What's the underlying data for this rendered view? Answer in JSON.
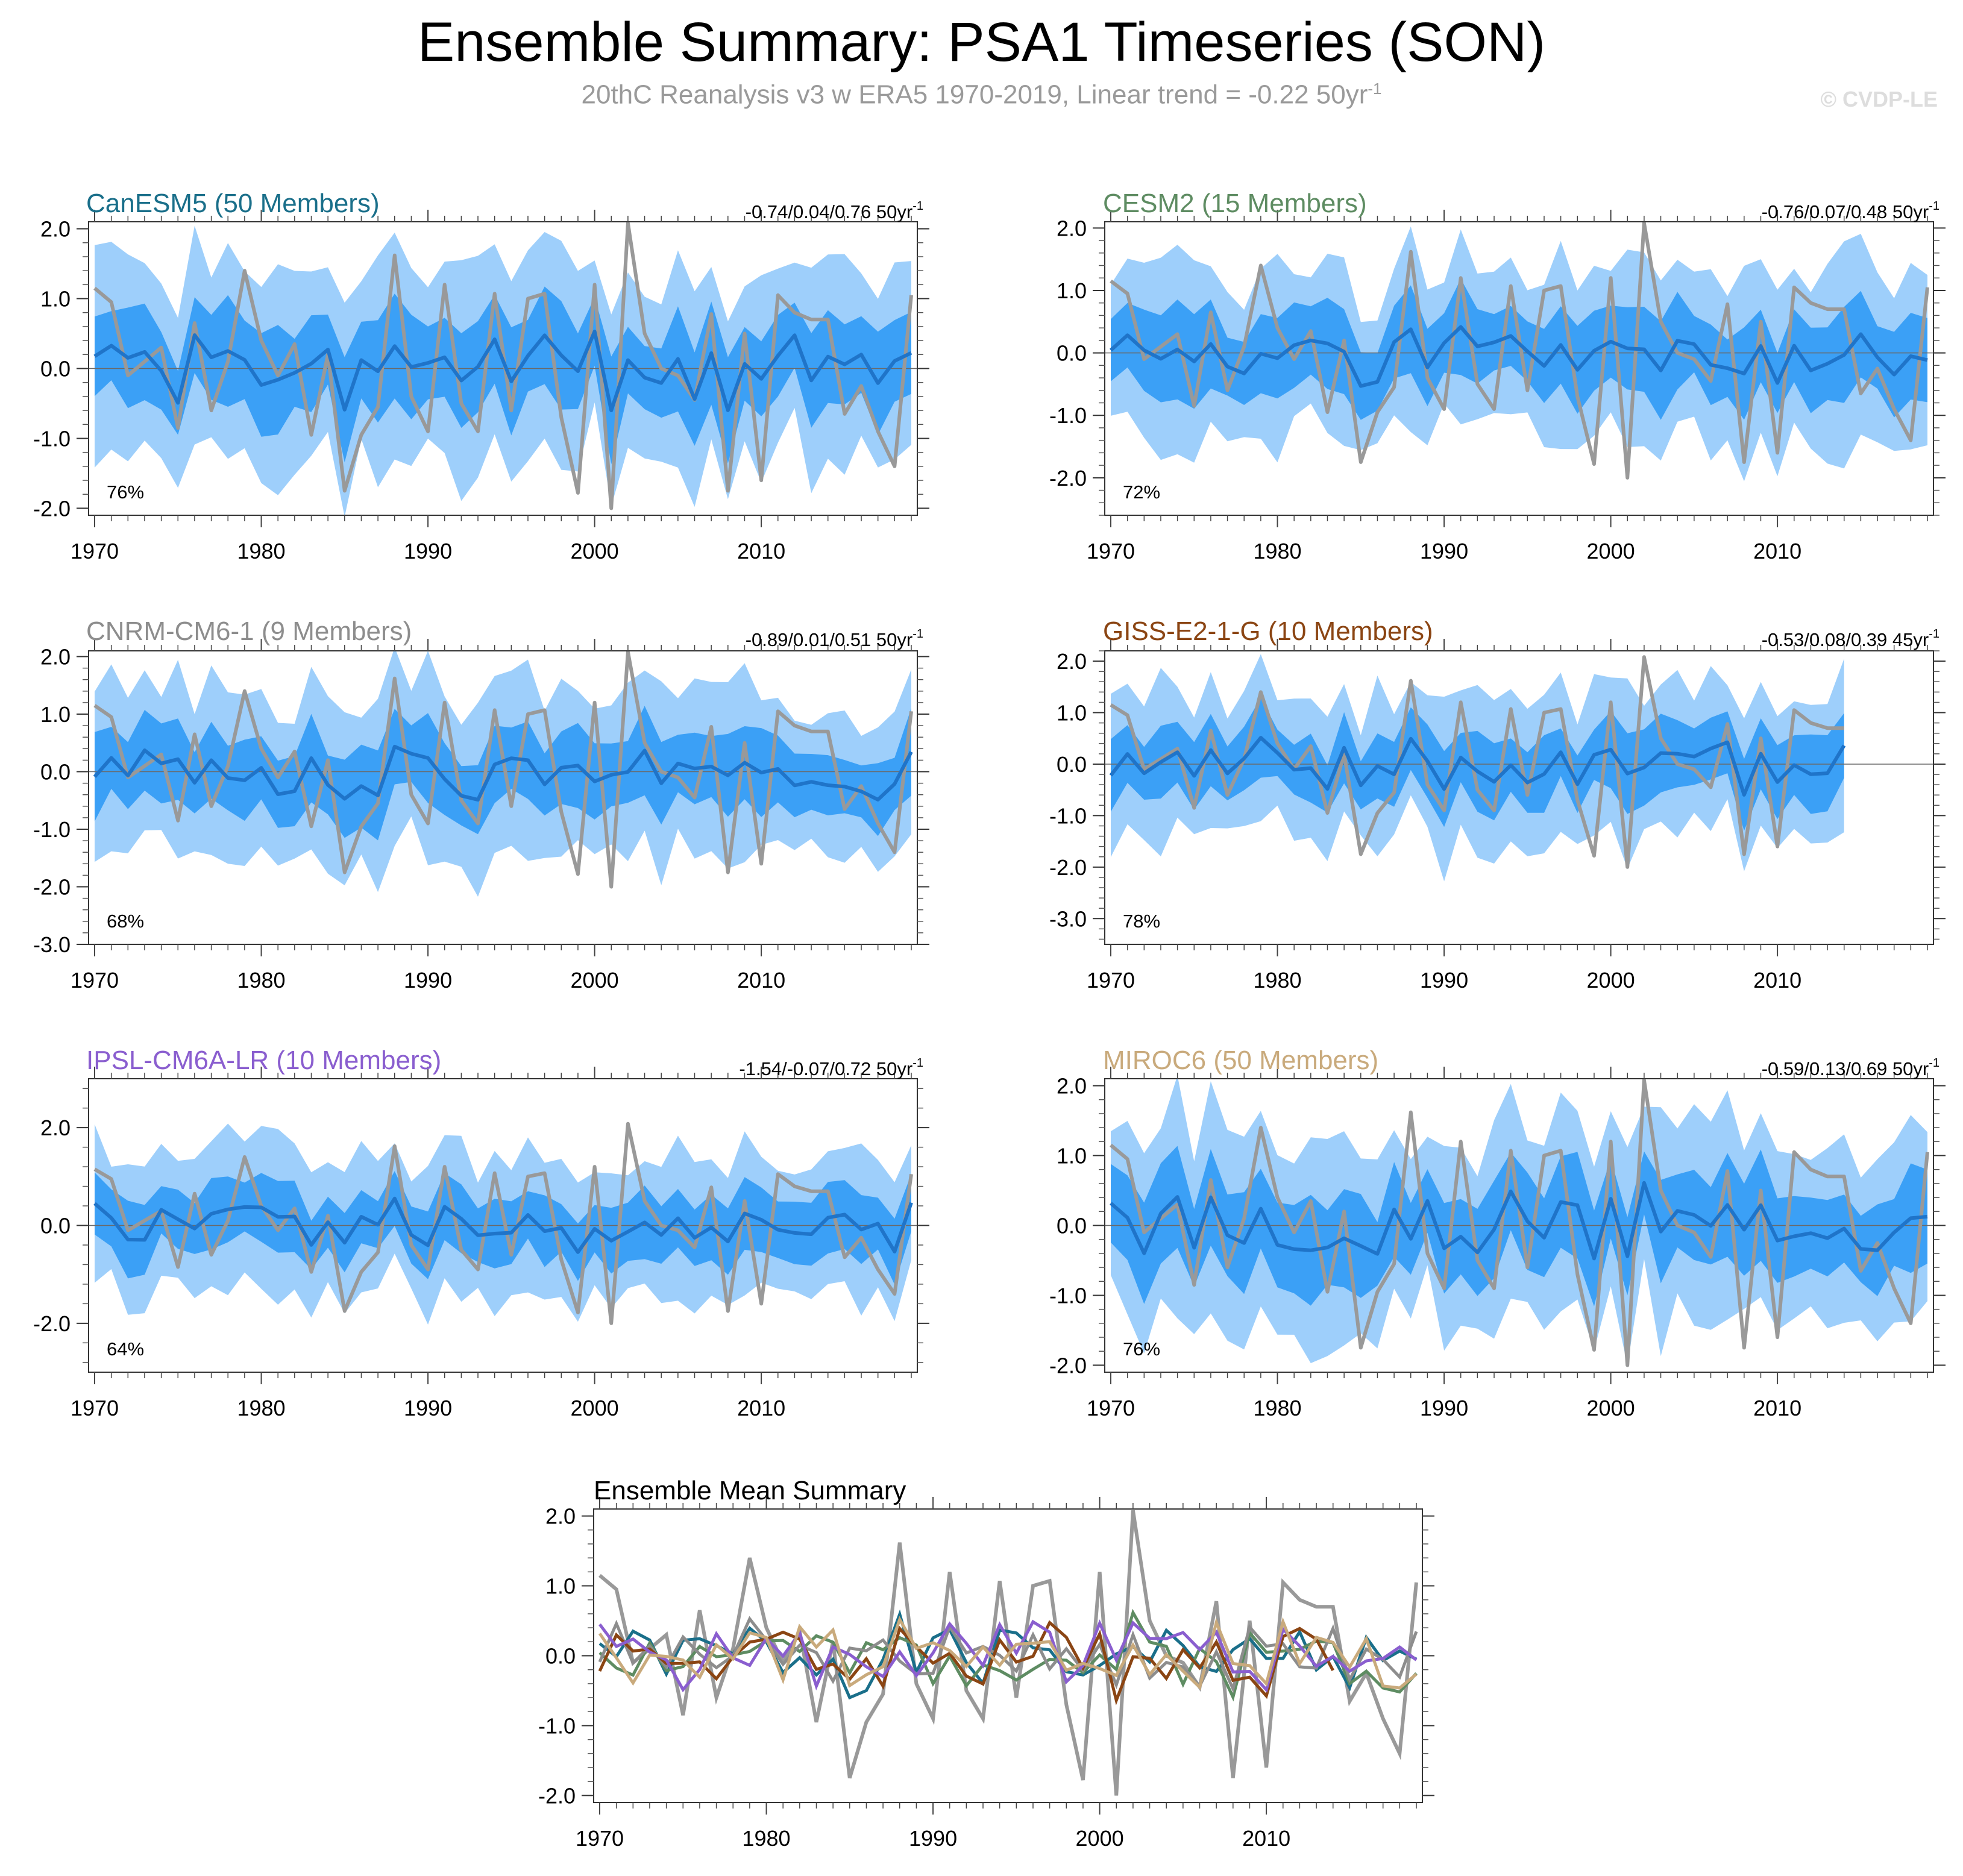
{
  "title": "Ensemble Summary: PSA1 Timeseries (SON)",
  "subtitle": "20thC Reanalysis v3 w ERA5 1970-2019, Linear trend = -0.22 50yr",
  "subtitle_sup": "-1",
  "watermark": "© CVDP-LE",
  "colors": {
    "light_band": "#9ecffb",
    "dark_band": "#3ba0f6",
    "ens_mean": "#1f74c9",
    "observed": "#999999",
    "axis": "#555555"
  },
  "chart_data": [
    {
      "id": "canesm5",
      "type": "line",
      "title": "CanESM5 (50 Members)",
      "title_color": "#1a6f8a",
      "trend_label": "-0.74/0.04/0.76 50yr",
      "trend_sup": "-1",
      "pct": "76%",
      "ylim": [
        -2.1,
        2.1
      ],
      "yticks": [
        -2.0,
        -1.0,
        0.0,
        1.0,
        2.0
      ],
      "yticklabels": [
        "-2.0",
        "-1.0",
        "0.0",
        "1.0",
        "2.0"
      ],
      "years": [
        1970,
        2019
      ],
      "ens_mean_seed": 1,
      "spread": 1.0
    },
    {
      "id": "cesm2",
      "type": "line",
      "title": "CESM2 (15 Members)",
      "title_color": "#5e8c62",
      "trend_label": "-0.76/0.07/0.48 50yr",
      "trend_sup": "-1",
      "pct": "72%",
      "ylim": [
        -2.6,
        2.1
      ],
      "yticks": [
        -2.0,
        -1.0,
        0.0,
        1.0,
        2.0
      ],
      "yticklabels": [
        "-2.0",
        "-1.0",
        "0.0",
        "1.0",
        "2.0"
      ],
      "years": [
        1970,
        2019
      ],
      "ens_mean_seed": 2,
      "spread": 1.0
    },
    {
      "id": "cnrm",
      "type": "line",
      "title": "CNRM-CM6-1 (9 Members)",
      "title_color": "#8d8d8d",
      "trend_label": "-0.89/0.01/0.51 50yr",
      "trend_sup": "-1",
      "pct": "68%",
      "ylim": [
        -3.0,
        2.1
      ],
      "yticks": [
        -3.0,
        -2.0,
        -1.0,
        0.0,
        1.0,
        2.0
      ],
      "yticklabels": [
        "-3.0",
        "-2.0",
        "-1.0",
        "0.0",
        "1.0",
        "2.0"
      ],
      "years": [
        1970,
        2019
      ],
      "ens_mean_seed": 3,
      "spread": 1.1
    },
    {
      "id": "giss",
      "type": "line",
      "title": "GISS-E2-1-G (10 Members)",
      "title_color": "#8b4513",
      "trend_label": "-0.53/0.08/0.39 45yr",
      "trend_sup": "-1",
      "pct": "78%",
      "ylim": [
        -3.5,
        2.2
      ],
      "yticks": [
        -3.0,
        -2.0,
        -1.0,
        0.0,
        1.0,
        2.0
      ],
      "yticklabels": [
        "-3.0",
        "-2.0",
        "-1.0",
        "0.0",
        "1.0",
        "2.0"
      ],
      "years": [
        1970,
        2014
      ],
      "ens_mean_seed": 4,
      "spread": 1.2
    },
    {
      "id": "ipsl",
      "type": "line",
      "title": "IPSL-CM6A-LR (10 Members)",
      "title_color": "#8a5ecf",
      "trend_label": "-1.54/-0.07/0.72 50yr",
      "trend_sup": "-1",
      "pct": "64%",
      "ylim": [
        -3.0,
        3.0
      ],
      "yticks": [
        -2.0,
        0.0,
        2.0
      ],
      "yticklabels": [
        "-2.0",
        "0.0",
        "2.0"
      ],
      "years": [
        1970,
        2019
      ],
      "ens_mean_seed": 5,
      "spread": 1.1
    },
    {
      "id": "miroc6",
      "type": "line",
      "title": "MIROC6 (50 Members)",
      "title_color": "#c9aa7c",
      "trend_label": "-0.59/0.13/0.69 50yr",
      "trend_sup": "-1",
      "pct": "76%",
      "ylim": [
        -2.1,
        2.1
      ],
      "yticks": [
        -2.0,
        -1.0,
        0.0,
        1.0,
        2.0
      ],
      "yticklabels": [
        "-2.0",
        "-1.0",
        "0.0",
        "1.0",
        "2.0"
      ],
      "years": [
        1970,
        2019
      ],
      "ens_mean_seed": 6,
      "spread": 1.0
    },
    {
      "id": "summary",
      "type": "line",
      "title": "Ensemble Mean Summary",
      "title_color": "#000000",
      "ylim": [
        -2.1,
        2.1
      ],
      "yticks": [
        -2.0,
        -1.0,
        0.0,
        1.0,
        2.0
      ],
      "yticklabels": [
        "-2.0",
        "-1.0",
        "0.0",
        "1.0",
        "2.0"
      ],
      "years": [
        1970,
        2019
      ],
      "series_colors": [
        "#1a6f8a",
        "#5e8c62",
        "#8d8d8d",
        "#8b4513",
        "#8a5ecf",
        "#c9aa7c"
      ]
    }
  ],
  "xticks": [
    1970,
    1980,
    1990,
    2000,
    2010
  ],
  "observed": [
    1.15,
    0.95,
    -0.1,
    0.1,
    0.3,
    -0.85,
    0.65,
    -0.6,
    0.1,
    1.4,
    0.4,
    -0.1,
    0.35,
    -0.95,
    0.2,
    -1.75,
    -0.95,
    -0.55,
    1.62,
    -0.4,
    -0.9,
    1.2,
    -0.5,
    -0.9,
    1.07,
    -0.6,
    1.0,
    1.07,
    -0.7,
    -1.78,
    1.2,
    -2.0,
    2.08,
    0.5,
    0.0,
    -0.1,
    -0.45,
    0.78,
    -1.75,
    0.5,
    -1.6,
    1.05,
    0.8,
    0.7,
    0.7,
    -0.65,
    -0.25,
    -0.9,
    -1.4,
    1.05
  ]
}
